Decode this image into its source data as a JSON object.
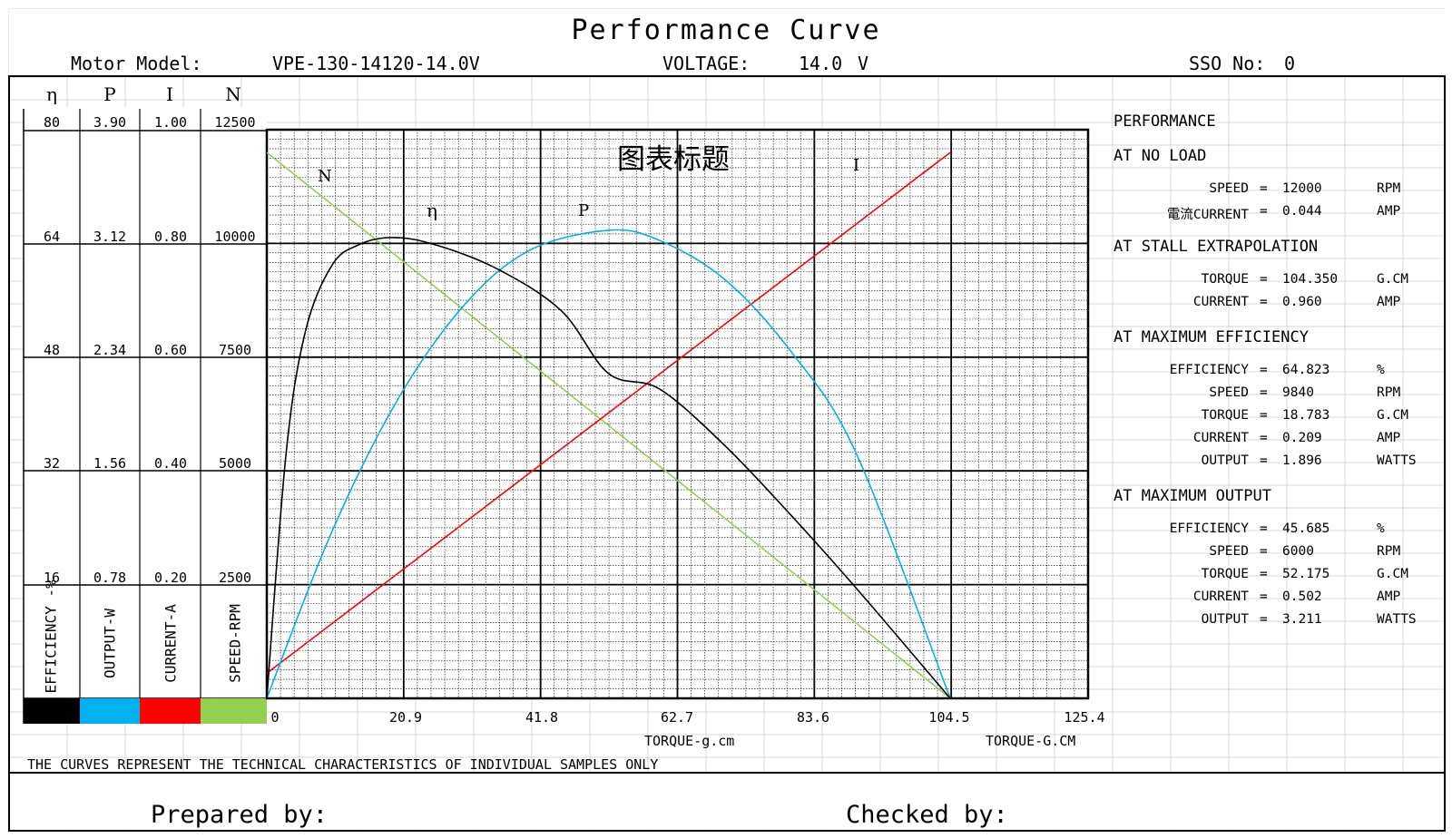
{
  "title": "Performance Curve",
  "header": {
    "model_label": "Motor Model:",
    "model_value": "VPE-130-14120-14.0V",
    "voltage_label": "VOLTAGE:",
    "voltage_value": "14.0",
    "voltage_unit": "V",
    "sso_label": "SSO No:",
    "sso_value": "0"
  },
  "scale_columns": [
    {
      "symbol": "η",
      "axis_label": "EFFICIENCY -%",
      "color": "#000000",
      "ticks": [
        "80",
        "64",
        "48",
        "32",
        "16"
      ]
    },
    {
      "symbol": "P",
      "axis_label": "OUTPUT-W",
      "color": "#00b0f0",
      "ticks": [
        "3.90",
        "3.12",
        "2.34",
        "1.56",
        "0.78"
      ]
    },
    {
      "symbol": "I",
      "axis_label": "CURRENT-A",
      "color": "#ff0000",
      "ticks": [
        "1.00",
        "0.80",
        "0.60",
        "0.40",
        "0.20"
      ]
    },
    {
      "symbol": "N",
      "axis_label": "SPEED-RPM",
      "color": "#92d050",
      "ticks": [
        "12500",
        "10000",
        "7500",
        "5000",
        "2500"
      ]
    }
  ],
  "chart_data": {
    "type": "line",
    "title": "图表标题",
    "xlabel": "TORQUE-g.cm",
    "xlabel_right": "TORQUE-G.CM",
    "xlim": [
      0,
      125.4
    ],
    "x_ticks": [
      "0",
      "20.9",
      "41.8",
      "62.7",
      "83.6",
      "104.5",
      "125.4"
    ],
    "y_gridlines": 5,
    "grid": true,
    "series": [
      {
        "name": "N",
        "color": "#92d050",
        "unit": "RPM",
        "ymax": 12500,
        "x": [
          0,
          104.35
        ],
        "y": [
          12000,
          0
        ]
      },
      {
        "name": "I",
        "color": "#ff0000",
        "unit": "A",
        "ymax": 1.0,
        "x": [
          0,
          104.35
        ],
        "y": [
          0.044,
          0.96
        ]
      },
      {
        "name": "P",
        "color": "#00b0f0",
        "unit": "W",
        "ymax": 3.9,
        "x": [
          0,
          10,
          20,
          30,
          40,
          52.175,
          60,
          70,
          80,
          90,
          104.35
        ],
        "y": [
          0,
          1.15,
          2.05,
          2.69,
          3.07,
          3.21,
          3.14,
          2.87,
          2.38,
          1.68,
          0
        ]
      },
      {
        "name": "η",
        "color": "#000000",
        "unit": "%",
        "ymax": 80,
        "x": [
          0,
          3,
          6,
          10,
          14,
          18.783,
          25,
          35,
          45,
          52.175,
          60,
          70,
          80,
          90,
          104.35
        ],
        "y": [
          0,
          35,
          52,
          61,
          63.8,
          64.82,
          64,
          60.5,
          54.5,
          45.7,
          43.5,
          35.5,
          25.8,
          15.5,
          0
        ]
      }
    ],
    "curve_labels": [
      "N",
      "η",
      "P",
      "I"
    ]
  },
  "performance": {
    "heading": "PERFORMANCE",
    "sections": [
      {
        "title": "AT NO LOAD",
        "rows": [
          {
            "label": "SPEED",
            "eq": "=",
            "value": "12000",
            "unit": "RPM"
          },
          {
            "label": "電流CURRENT",
            "eq": "=",
            "value": "0.044",
            "unit": "AMP"
          }
        ]
      },
      {
        "title": "AT STALL EXTRAPOLATION",
        "rows": [
          {
            "label": "TORQUE",
            "eq": "=",
            "value": "104.350",
            "unit": "G.CM"
          },
          {
            "label": "CURRENT",
            "eq": "=",
            "value": "0.960",
            "unit": "AMP"
          }
        ]
      },
      {
        "title": "AT MAXIMUM EFFICIENCY",
        "rows": [
          {
            "label": "EFFICIENCY",
            "eq": "=",
            "value": "64.823",
            "unit": "%"
          },
          {
            "label": "SPEED",
            "eq": "=",
            "value": "9840",
            "unit": "RPM"
          },
          {
            "label": "TORQUE",
            "eq": "=",
            "value": "18.783",
            "unit": "G.CM"
          },
          {
            "label": "CURRENT",
            "eq": "=",
            "value": "0.209",
            "unit": "AMP"
          },
          {
            "label": "OUTPUT",
            "eq": "=",
            "value": "1.896",
            "unit": "WATTS"
          }
        ]
      },
      {
        "title": "AT MAXIMUM OUTPUT",
        "rows": [
          {
            "label": "EFFICIENCY",
            "eq": "=",
            "value": "45.685",
            "unit": "%"
          },
          {
            "label": "SPEED",
            "eq": "=",
            "value": "6000",
            "unit": "RPM"
          },
          {
            "label": "TORQUE",
            "eq": "=",
            "value": "52.175",
            "unit": "G.CM"
          },
          {
            "label": "CURRENT",
            "eq": "=",
            "value": "0.502",
            "unit": "AMP"
          },
          {
            "label": "OUTPUT",
            "eq": "=",
            "value": "3.211",
            "unit": "WATTS"
          }
        ]
      }
    ]
  },
  "footer": {
    "note": "THE CURVES REPRESENT THE TECHNICAL CHARACTERISTICS OF INDIVIDUAL SAMPLES ONLY",
    "prepared_label": "Prepared by:",
    "checked_label": "Checked by:"
  }
}
